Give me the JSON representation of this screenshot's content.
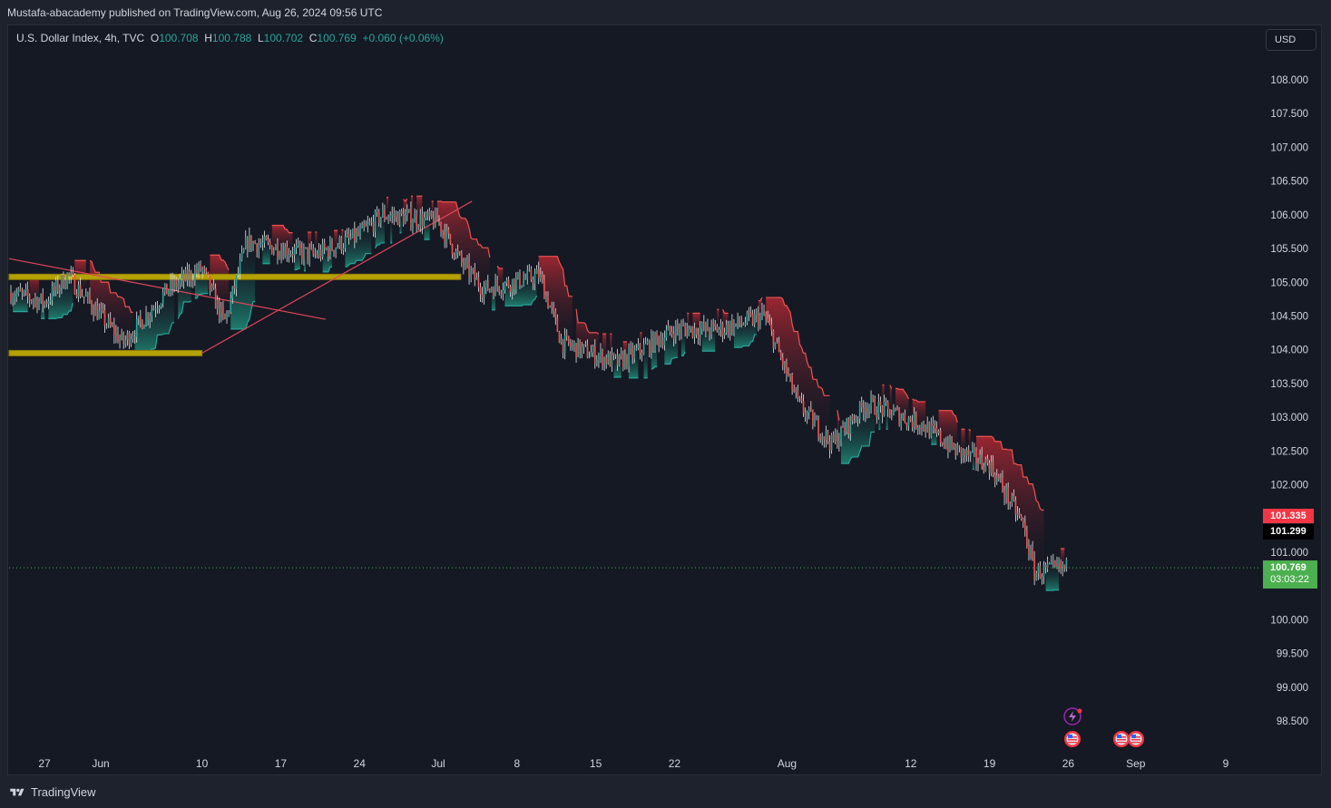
{
  "header": {
    "publisher_line": "Mustafa-abacademy published on TradingView.com, Aug 26, 2024 09:56 UTC"
  },
  "legend": {
    "symbol": "U.S. Dollar Index, 4h, TVC",
    "o_label": "O",
    "o_value": "100.708",
    "h_label": "H",
    "h_value": "100.788",
    "l_label": "L",
    "l_value": "100.702",
    "c_label": "C",
    "c_value": "100.769",
    "change": "+0.060 (+0.06%)"
  },
  "currency_button": "USD",
  "price_tags": {
    "tag_1": "101.335",
    "tag_2": "101.299",
    "last_price": "100.769",
    "countdown": "03:03:22"
  },
  "footer": {
    "brand": "TradingView"
  },
  "colors": {
    "background": "#151924",
    "up": "#26a69a",
    "down": "#ef5350",
    "zone": "#b5a200",
    "last_price": "#4caf50",
    "red_tag": "#f23645"
  },
  "icons": [
    "flash-event-icon",
    "us-flag-event-icon",
    "tradingview-logo-icon"
  ],
  "chart_data": {
    "type": "candlestick",
    "timeframe": "4h",
    "y_axis": {
      "ticks": [
        "108.000",
        "107.500",
        "107.000",
        "106.500",
        "106.000",
        "105.500",
        "105.000",
        "104.500",
        "104.000",
        "103.500",
        "103.000",
        "102.500",
        "102.000",
        "101.000",
        "100.000",
        "99.500",
        "99.000",
        "98.500"
      ],
      "range": [
        98.0,
        108.5
      ]
    },
    "x_axis": {
      "ticks": [
        "27",
        "Jun",
        "10",
        "17",
        "24",
        "Jul",
        "8",
        "15",
        "22",
        "Aug",
        "12",
        "19",
        "26",
        "Sep",
        "9"
      ]
    },
    "approx_close_path": [
      {
        "date": "May 23",
        "close": 104.9
      },
      {
        "date": "May 27",
        "close": 104.7
      },
      {
        "date": "May 29",
        "close": 105.1
      },
      {
        "date": "Jun 3",
        "close": 104.1
      },
      {
        "date": "Jun 7",
        "close": 104.9
      },
      {
        "date": "Jun 10",
        "close": 105.2
      },
      {
        "date": "Jun 12",
        "close": 104.4
      },
      {
        "date": "Jun 14",
        "close": 105.6
      },
      {
        "date": "Jun 20",
        "close": 105.4
      },
      {
        "date": "Jun 24",
        "close": 105.7
      },
      {
        "date": "Jun 26",
        "close": 106.0
      },
      {
        "date": "Jul 1",
        "close": 105.9
      },
      {
        "date": "Jul 3",
        "close": 105.3
      },
      {
        "date": "Jul 5",
        "close": 104.9
      },
      {
        "date": "Jul 10",
        "close": 105.1
      },
      {
        "date": "Jul 12",
        "close": 104.1
      },
      {
        "date": "Jul 17",
        "close": 103.8
      },
      {
        "date": "Jul 22",
        "close": 104.3
      },
      {
        "date": "Jul 26",
        "close": 104.3
      },
      {
        "date": "Jul 30",
        "close": 104.5
      },
      {
        "date": "Aug 2",
        "close": 103.2
      },
      {
        "date": "Aug 5",
        "close": 102.6
      },
      {
        "date": "Aug 8",
        "close": 103.2
      },
      {
        "date": "Aug 13",
        "close": 102.9
      },
      {
        "date": "Aug 16",
        "close": 102.5
      },
      {
        "date": "Aug 19",
        "close": 102.3
      },
      {
        "date": "Aug 22",
        "close": 101.4
      },
      {
        "date": "Aug 23",
        "close": 100.7
      },
      {
        "date": "Aug 26",
        "close": 100.769
      }
    ],
    "horizontal_zones": [
      {
        "name": "resistance-zone",
        "price": 105.08,
        "from": "May 23",
        "to": "Jul 3"
      },
      {
        "name": "support-zone",
        "price": 103.95,
        "from": "May 23",
        "to": "Jun 10"
      }
    ],
    "trendlines": [
      {
        "name": "rising-trendline",
        "from": {
          "date": "Jun 10",
          "price": 103.95
        },
        "to": {
          "date": "Jul 4",
          "price": 106.2
        }
      },
      {
        "name": "falling-trendline",
        "from": {
          "date": "May 23",
          "price": 105.35
        },
        "to": {
          "date": "Jun 21",
          "price": 104.45
        }
      }
    ],
    "last_price_line": 100.769,
    "grid": false
  }
}
